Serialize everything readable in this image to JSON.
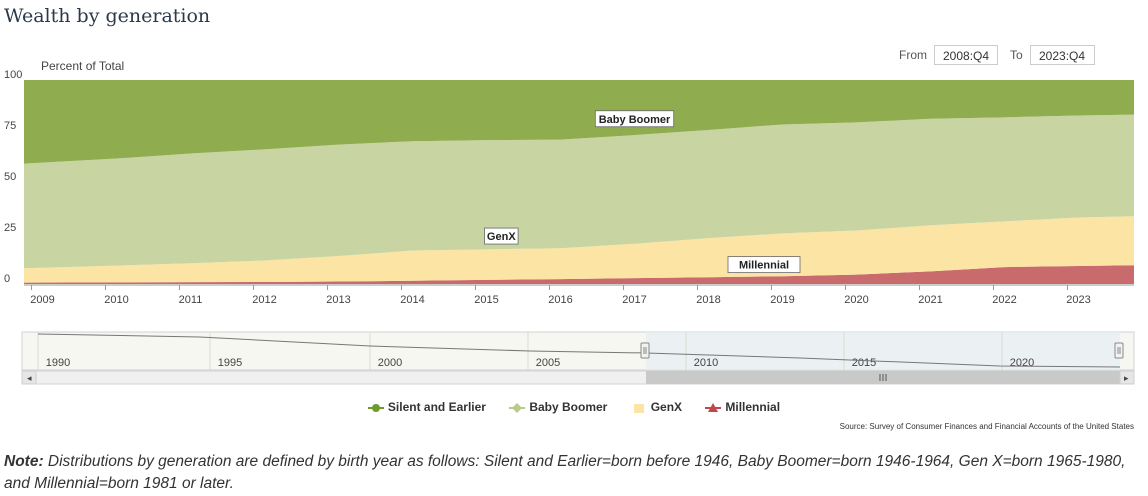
{
  "title": "Wealth by generation",
  "range": {
    "from_label": "From",
    "from_value": "2008:Q4",
    "to_label": "To",
    "to_value": "2023:Q4"
  },
  "chart_data": {
    "type": "area",
    "stacked": true,
    "ylabel": "Percent of Total",
    "ylim": [
      0,
      100
    ],
    "yticks": [
      "100",
      "75",
      "50",
      "25",
      "0"
    ],
    "x": [
      2008.75,
      2010,
      2011,
      2012,
      2013,
      2014,
      2015,
      2016,
      2017,
      2018,
      2019,
      2020,
      2021,
      2022,
      2023,
      2023.75
    ],
    "xtick_labels": [
      "2009",
      "2010",
      "2011",
      "2012",
      "2013",
      "2014",
      "2015",
      "2016",
      "2017",
      "2018",
      "2019",
      "2020",
      "2021",
      "2022",
      "2023"
    ],
    "series": [
      {
        "name": "Millennial",
        "color": "#c96a6c",
        "values": [
          0.7,
          0.8,
          0.9,
          1.0,
          1.2,
          1.6,
          2.0,
          2.4,
          2.9,
          3.3,
          3.8,
          4.6,
          6.2,
          8.3,
          8.8,
          9.2
        ]
      },
      {
        "name": "GenX",
        "color": "#fbe4a4",
        "values": [
          7.0,
          8.2,
          9.3,
          10.5,
          12.5,
          14.8,
          15.0,
          15.1,
          16.8,
          19.2,
          21.0,
          21.6,
          22.6,
          22.4,
          23.8,
          24.0
        ]
      },
      {
        "name": "Baby Boomer",
        "color": "#c8d5a3",
        "values": [
          51.3,
          52.5,
          53.8,
          54.5,
          54.6,
          53.6,
          53.5,
          53.3,
          53.3,
          53.0,
          53.4,
          53.0,
          52.2,
          51.0,
          50.0,
          49.8
        ]
      },
      {
        "name": "Silent and Earlier",
        "color": "#8fad4e",
        "values": [
          41.0,
          38.5,
          36.0,
          34.0,
          31.7,
          30.0,
          29.5,
          29.2,
          27.0,
          24.5,
          21.8,
          20.8,
          19.0,
          18.3,
          17.4,
          17.0
        ]
      }
    ],
    "annotations": [
      {
        "text": "Baby Boomer",
        "x": 2017.0,
        "y": 81
      },
      {
        "text": "GenX",
        "x": 2015.2,
        "y": 23.5
      },
      {
        "text": "Millennial",
        "x": 2018.75,
        "y": 9.5
      }
    ]
  },
  "navigator": {
    "tick_labels": [
      "1990",
      "1995",
      "2000",
      "2005",
      "2010",
      "2015",
      "2020"
    ],
    "grip_icon": "grip-lines-icon",
    "left_arrow": "◂",
    "right_arrow": "▸"
  },
  "legend": [
    {
      "label": "Silent and Earlier",
      "marker": "circle",
      "color": "#6e9a2c"
    },
    {
      "label": "Baby Boomer",
      "marker": "diamond",
      "color": "#b7cc8a"
    },
    {
      "label": "GenX",
      "marker": "square",
      "color": "#fbe4a4"
    },
    {
      "label": "Millennial",
      "marker": "triangle",
      "color": "#c0484b"
    }
  ],
  "source": "Source: Survey of Consumer Finances and Financial Accounts of the United States",
  "note": {
    "label": "Note:",
    "text": " Distributions by generation are defined by birth year as follows: Silent and Earlier=born before 1946, Baby Boomer=born 1946-1964, Gen X=born 1965-1980, and Millennial=born 1981 or later."
  }
}
